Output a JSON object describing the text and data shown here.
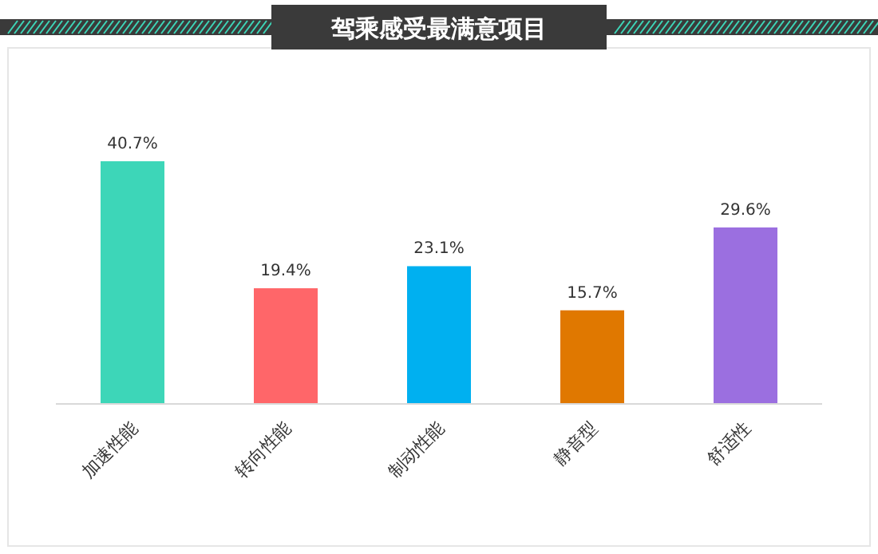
{
  "chart_data": {
    "type": "bar",
    "title": "驾乘感受最满意项目",
    "categories": [
      "加速性能",
      "转向性能",
      "制动性能",
      "静音型",
      "舒适性"
    ],
    "values": [
      40.7,
      19.4,
      23.1,
      15.7,
      29.6
    ],
    "value_labels": [
      "40.7%",
      "19.4%",
      "23.1%",
      "15.7%",
      "29.6%"
    ],
    "colors": [
      "#3dd6b8",
      "#ff6669",
      "#00b0f0",
      "#e07800",
      "#9b6fe0"
    ]
  }
}
